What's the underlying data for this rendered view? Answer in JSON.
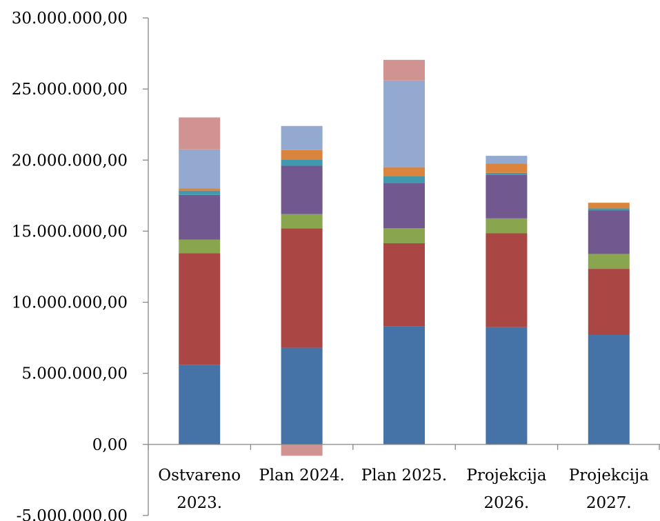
{
  "chart_data": {
    "type": "bar",
    "stacked": true,
    "categories": [
      [
        "Ostvareno",
        "2023."
      ],
      [
        "Plan 2024."
      ],
      [
        "Plan 2025."
      ],
      [
        "Projekcija",
        "2026."
      ],
      [
        "Projekcija",
        "2027."
      ]
    ],
    "y_tick_labels": [
      "30.000.000,00",
      "25.000.000,00",
      "20.000.000,00",
      "15.000.000,00",
      "10.000.000,00",
      "5.000.000,00",
      "0,00",
      "-5.000.000,00"
    ],
    "ylim": [
      -5000000,
      30000000
    ],
    "ytick_step": 5000000,
    "grid": false,
    "legend": "none",
    "series": [
      {
        "color": "#4572A7",
        "values": [
          5600000,
          6800000,
          8300000,
          8250000,
          7700000
        ]
      },
      {
        "color": "#AA4643",
        "values": [
          7850000,
          8400000,
          5850000,
          6600000,
          4650000
        ]
      },
      {
        "color": "#89A54E",
        "values": [
          950000,
          1000000,
          1050000,
          1050000,
          1050000
        ]
      },
      {
        "color": "#71588F",
        "values": [
          3150000,
          3400000,
          3200000,
          3050000,
          3050000
        ]
      },
      {
        "color": "#4198AF",
        "values": [
          300000,
          450000,
          450000,
          150000,
          150000
        ]
      },
      {
        "color": "#DB843D",
        "values": [
          150000,
          650000,
          650000,
          650000,
          400000
        ]
      },
      {
        "color": "#93A9CF",
        "values": [
          2750000,
          1700000,
          6100000,
          550000,
          0
        ]
      },
      {
        "color": "#D19392",
        "values": [
          2250000,
          -800000,
          1450000,
          0,
          0
        ]
      }
    ]
  }
}
